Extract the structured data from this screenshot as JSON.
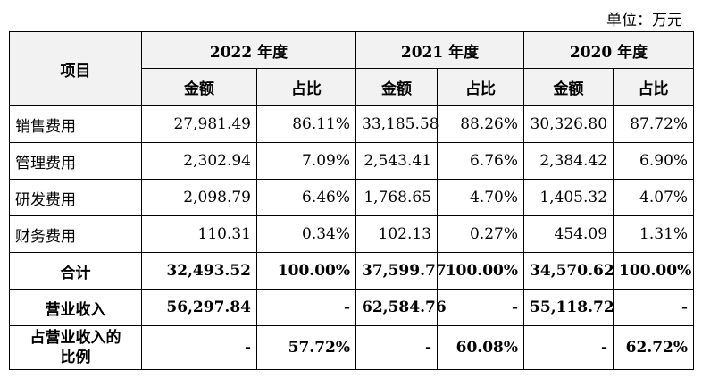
{
  "unit_label": "单位：万元",
  "table": {
    "item_header": "项目",
    "years": [
      "2022 年度",
      "2021 年度",
      "2020 年度"
    ],
    "sub_headers": [
      "金额",
      "占比"
    ],
    "rows": [
      {
        "label": "销售费用",
        "cells": [
          "27,981.49",
          "86.11%",
          "33,185.58",
          "88.26%",
          "30,326.80",
          "87.72%"
        ]
      },
      {
        "label": "管理费用",
        "cells": [
          "2,302.94",
          "7.09%",
          "2,543.41",
          "6.76%",
          "2,384.42",
          "6.90%"
        ]
      },
      {
        "label": "研发费用",
        "cells": [
          "2,098.79",
          "6.46%",
          "1,768.65",
          "4.70%",
          "1,405.32",
          "4.07%"
        ]
      },
      {
        "label": "财务费用",
        "cells": [
          "110.31",
          "0.34%",
          "102.13",
          "0.27%",
          "454.09",
          "1.31%"
        ]
      }
    ],
    "total": {
      "label": "合计",
      "cells": [
        "32,493.52",
        "100.00%",
        "37,599.77",
        "100.00%",
        "34,570.62",
        "100.00%"
      ]
    },
    "revenue": {
      "label": "营业收入",
      "cells": [
        "56,297.84",
        "-",
        "62,584.76",
        "-",
        "55,118.72",
        "-"
      ]
    },
    "ratio": {
      "label_line1": "占营业收入的",
      "label_line2": "比例",
      "cells": [
        "-",
        "57.72%",
        "-",
        "60.08%",
        "-",
        "62.72%"
      ]
    }
  }
}
